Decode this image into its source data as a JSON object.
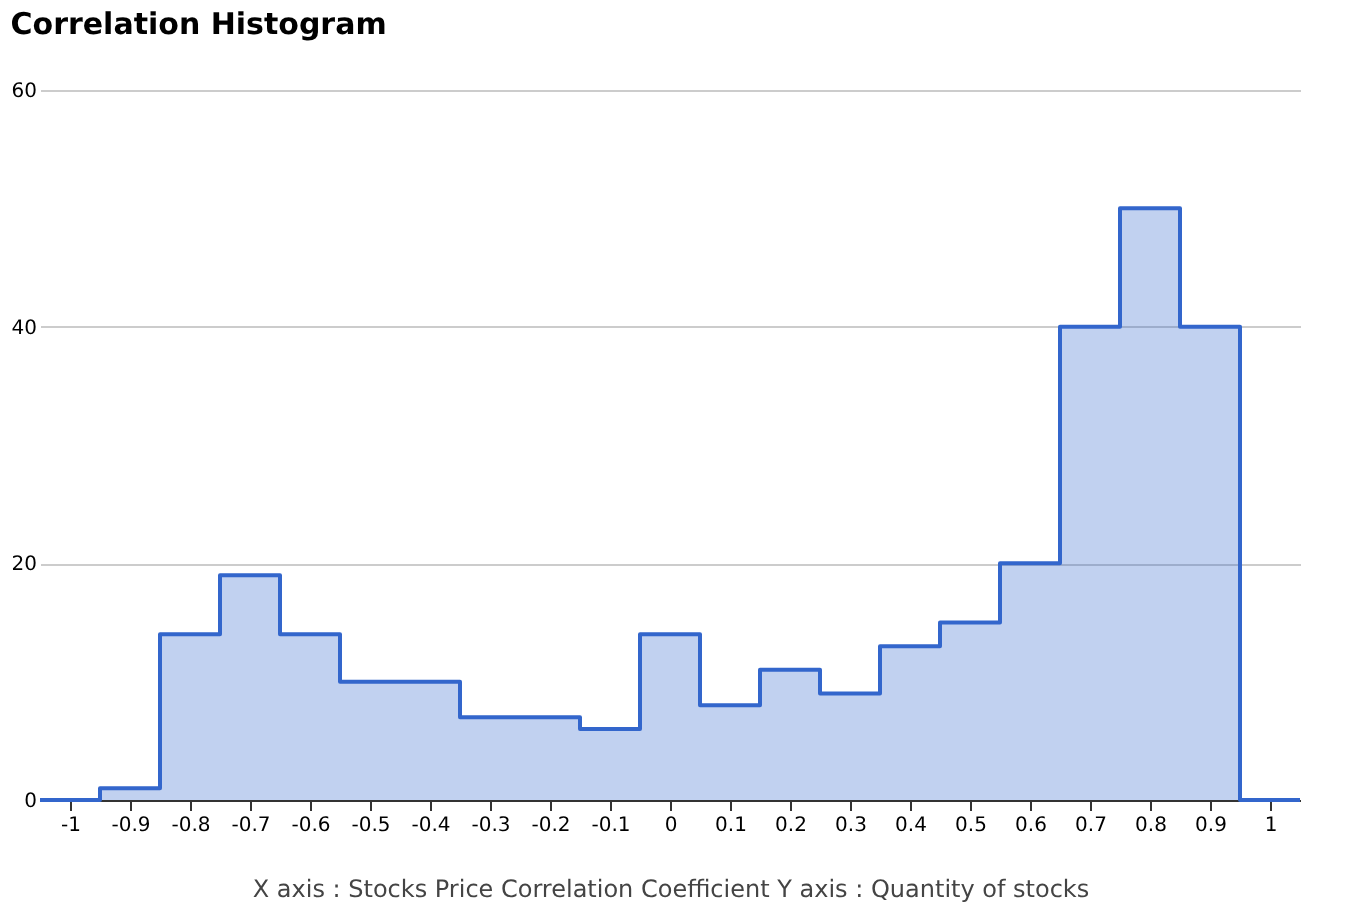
{
  "chart_data": {
    "type": "histogram",
    "title": "Correlation Histogram",
    "xlabel": "X axis : Stocks Price Correlation Coefficient  Y axis : Quantity of stocks",
    "bins": [
      -1.05,
      -0.95,
      -0.85,
      -0.75,
      -0.65,
      -0.55,
      -0.45,
      -0.35,
      -0.25,
      -0.15,
      -0.05,
      0.05,
      0.15,
      0.25,
      0.35,
      0.45,
      0.55,
      0.65,
      0.75,
      0.85,
      0.95,
      1.05
    ],
    "values": [
      0,
      1,
      14,
      19,
      14,
      10,
      10,
      7,
      7,
      6,
      14,
      8,
      11,
      9,
      13,
      15,
      20,
      40,
      50,
      40,
      0
    ],
    "color": "#3366cc",
    "xlim": [
      -1.05,
      1.05
    ],
    "xticks": [
      -1,
      -0.9,
      -0.8,
      -0.7,
      -0.6,
      -0.5,
      -0.4,
      -0.3,
      -0.2,
      -0.1,
      0,
      0.1,
      0.2,
      0.3,
      0.4,
      0.5,
      0.6,
      0.7,
      0.8,
      0.9,
      1
    ],
    "ylim": [
      0,
      60
    ],
    "yticks": [
      0,
      20,
      40,
      60
    ],
    "grid": "y"
  }
}
